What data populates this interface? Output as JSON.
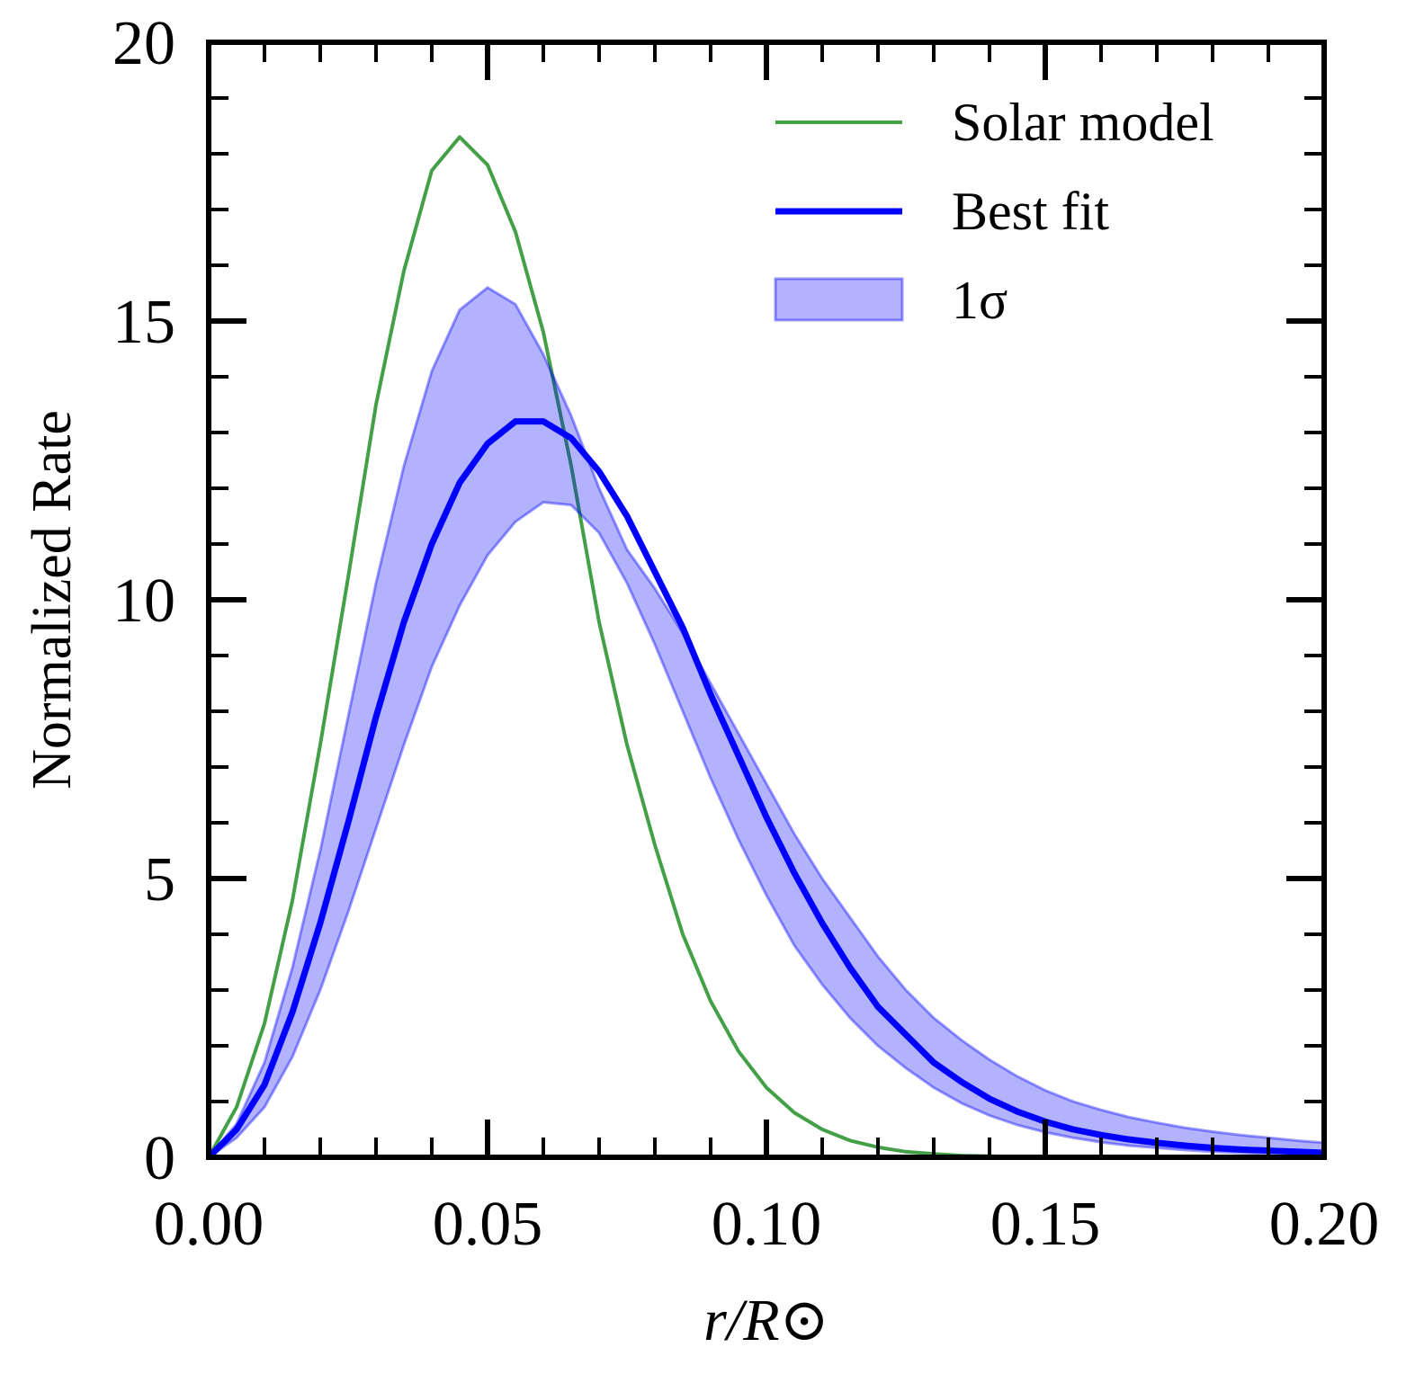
{
  "chart_data": {
    "type": "line",
    "xlabel": "r/R⊙",
    "ylabel": "Normalized Rate",
    "x": [
      0,
      0.005,
      0.01,
      0.015,
      0.02,
      0.025,
      0.03,
      0.035,
      0.04,
      0.045,
      0.05,
      0.055,
      0.06,
      0.065,
      0.07,
      0.075,
      0.08,
      0.085,
      0.09,
      0.095,
      0.1,
      0.105,
      0.11,
      0.115,
      0.12,
      0.125,
      0.13,
      0.135,
      0.14,
      0.145,
      0.15,
      0.155,
      0.16,
      0.165,
      0.17,
      0.175,
      0.18,
      0.185,
      0.19,
      0.195,
      0.2
    ],
    "series": [
      {
        "name": "Solar model",
        "color": "#43a047",
        "width": 4,
        "values": [
          0,
          0.9,
          2.4,
          4.6,
          7.4,
          10.4,
          13.5,
          15.9,
          17.7,
          18.3,
          17.8,
          16.6,
          14.8,
          12.4,
          9.6,
          7.4,
          5.6,
          4.0,
          2.8,
          1.9,
          1.25,
          0.8,
          0.5,
          0.3,
          0.18,
          0.1,
          0.06,
          0.03,
          0.02,
          0.01,
          0.005,
          0,
          0,
          0,
          0,
          0,
          0,
          0,
          0,
          0,
          0
        ]
      },
      {
        "name": "Best fit",
        "color": "#0000ff",
        "width": 7,
        "values": [
          0,
          0.5,
          1.3,
          2.6,
          4.2,
          6.0,
          7.9,
          9.6,
          11.0,
          12.1,
          12.8,
          13.2,
          13.2,
          12.9,
          12.3,
          11.5,
          10.5,
          9.5,
          8.3,
          7.2,
          6.1,
          5.1,
          4.2,
          3.4,
          2.7,
          2.2,
          1.7,
          1.35,
          1.05,
          0.82,
          0.64,
          0.5,
          0.4,
          0.32,
          0.26,
          0.21,
          0.17,
          0.14,
          0.12,
          0.1,
          0.08
        ]
      },
      {
        "name": "1σ",
        "color": "#0000ff",
        "band": true,
        "opacity": 0.3,
        "upper": [
          0,
          0.6,
          1.7,
          3.4,
          5.5,
          7.9,
          10.3,
          12.4,
          14.1,
          15.2,
          15.6,
          15.3,
          14.4,
          13.3,
          12.0,
          10.9,
          10.2,
          9.4,
          8.5,
          7.6,
          6.7,
          5.8,
          5.0,
          4.3,
          3.6,
          3.0,
          2.5,
          2.1,
          1.75,
          1.45,
          1.2,
          1.0,
          0.85,
          0.72,
          0.62,
          0.53,
          0.46,
          0.4,
          0.35,
          0.3,
          0.26
        ],
        "lower": [
          0,
          0.35,
          0.9,
          1.8,
          3.0,
          4.4,
          5.9,
          7.4,
          8.8,
          9.9,
          10.8,
          11.4,
          11.75,
          11.7,
          11.2,
          10.3,
          9.2,
          8.0,
          6.8,
          5.7,
          4.7,
          3.8,
          3.1,
          2.5,
          2.0,
          1.6,
          1.25,
          0.97,
          0.75,
          0.58,
          0.45,
          0.35,
          0.27,
          0.21,
          0.17,
          0.13,
          0.1,
          0.08,
          0.065,
          0.05,
          0.04
        ]
      }
    ],
    "xlim": [
      0,
      0.2
    ],
    "ylim": [
      0,
      20
    ],
    "xticks": [
      {
        "value": 0,
        "label": "0.00"
      },
      {
        "value": 0.05,
        "label": "0.05"
      },
      {
        "value": 0.1,
        "label": "0.10"
      },
      {
        "value": 0.15,
        "label": "0.15"
      },
      {
        "value": 0.2,
        "label": "0.20"
      }
    ],
    "yticks": [
      0,
      5,
      10,
      15,
      20
    ],
    "xminorticks": [
      0.01,
      0.02,
      0.03,
      0.04,
      0.06,
      0.07,
      0.08,
      0.09,
      0.11,
      0.12,
      0.13,
      0.14,
      0.16,
      0.17,
      0.18,
      0.19
    ],
    "yminorticks": [
      1,
      2,
      3,
      4,
      6,
      7,
      8,
      9,
      11,
      12,
      13,
      14,
      16,
      17,
      18,
      19
    ],
    "legend": "upper right",
    "grid": false
  }
}
